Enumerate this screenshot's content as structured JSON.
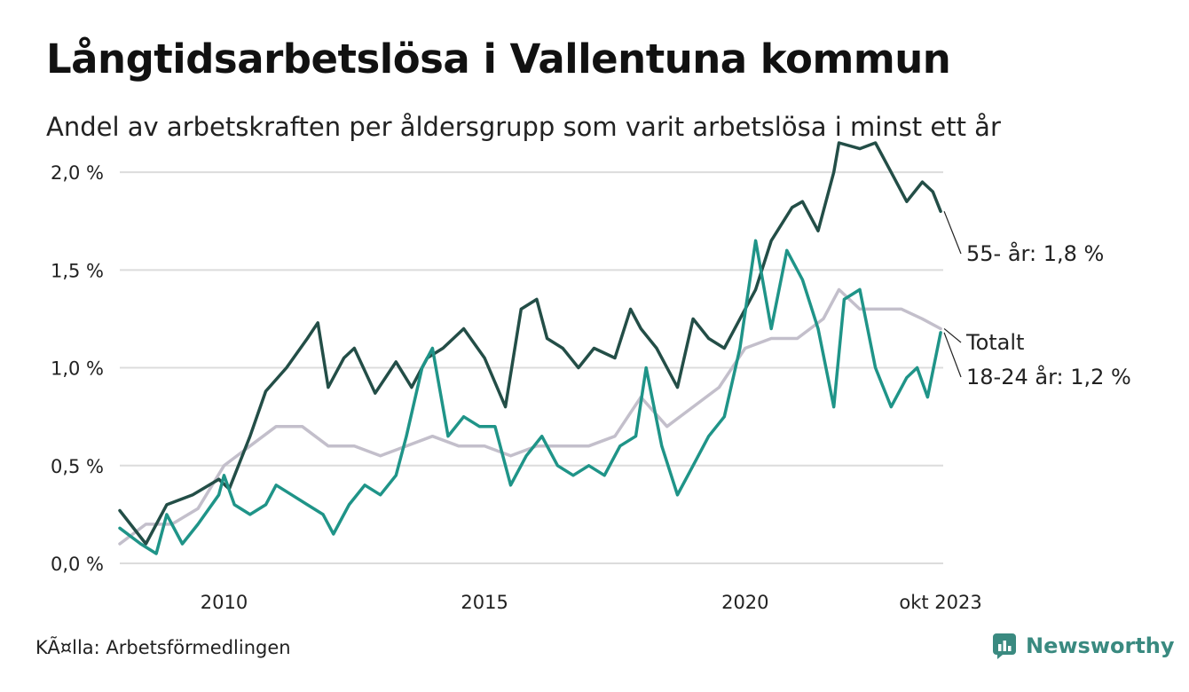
{
  "title": "Långtidsarbetslösa i Vallentuna kommun",
  "subtitle": "Andel av arbetskraften per åldersgrupp som varit arbetslösa i minst ett år",
  "source": "KÃ¤lla: Arbetsförmedlingen",
  "brand": "Newsworthy",
  "colors": {
    "s55": "#234e47",
    "total": "#c3bfcb",
    "s1824": "#1f9488",
    "grid": "#dcdcdc",
    "brand": "#3a8a80"
  },
  "chart_data": {
    "type": "line",
    "title": "Långtidsarbetslösa i Vallentuna kommun",
    "xlabel": "",
    "ylabel": "",
    "xlim": [
      2008.0,
      2023.8
    ],
    "ylim": [
      0,
      2.2
    ],
    "y_ticks": [
      0,
      0.5,
      1.0,
      1.5,
      2.0
    ],
    "y_tick_labels": [
      "0,0 %",
      "0,5 %",
      "1,0 %",
      "1,5 %",
      "2,0 %"
    ],
    "x_ticks": [
      2010,
      2015,
      2020,
      2023.75
    ],
    "x_tick_labels": [
      "2010",
      "2015",
      "2020",
      "okt 2023"
    ],
    "grid": true,
    "series": [
      {
        "name": "55- år",
        "end_label": "55- år: 1,8 %",
        "color_key": "s55",
        "points": [
          [
            2008.0,
            0.27
          ],
          [
            2008.5,
            0.1
          ],
          [
            2008.9,
            0.3
          ],
          [
            2009.4,
            0.35
          ],
          [
            2009.9,
            0.43
          ],
          [
            2010.1,
            0.38
          ],
          [
            2010.5,
            0.65
          ],
          [
            2010.8,
            0.88
          ],
          [
            2011.2,
            1.0
          ],
          [
            2011.6,
            1.15
          ],
          [
            2011.8,
            1.23
          ],
          [
            2012.0,
            0.9
          ],
          [
            2012.3,
            1.05
          ],
          [
            2012.5,
            1.1
          ],
          [
            2012.9,
            0.87
          ],
          [
            2013.3,
            1.03
          ],
          [
            2013.6,
            0.9
          ],
          [
            2013.9,
            1.05
          ],
          [
            2014.2,
            1.1
          ],
          [
            2014.6,
            1.2
          ],
          [
            2015.0,
            1.05
          ],
          [
            2015.4,
            0.8
          ],
          [
            2015.7,
            1.3
          ],
          [
            2016.0,
            1.35
          ],
          [
            2016.2,
            1.15
          ],
          [
            2016.5,
            1.1
          ],
          [
            2016.8,
            1.0
          ],
          [
            2017.1,
            1.1
          ],
          [
            2017.5,
            1.05
          ],
          [
            2017.8,
            1.3
          ],
          [
            2018.0,
            1.2
          ],
          [
            2018.3,
            1.1
          ],
          [
            2018.7,
            0.9
          ],
          [
            2019.0,
            1.25
          ],
          [
            2019.3,
            1.15
          ],
          [
            2019.6,
            1.1
          ],
          [
            2019.9,
            1.25
          ],
          [
            2020.2,
            1.4
          ],
          [
            2020.5,
            1.65
          ],
          [
            2020.9,
            1.82
          ],
          [
            2021.1,
            1.85
          ],
          [
            2021.4,
            1.7
          ],
          [
            2021.7,
            2.0
          ],
          [
            2021.8,
            2.15
          ],
          [
            2022.2,
            2.12
          ],
          [
            2022.5,
            2.15
          ],
          [
            2022.8,
            2.0
          ],
          [
            2023.1,
            1.85
          ],
          [
            2023.4,
            1.95
          ],
          [
            2023.6,
            1.9
          ],
          [
            2023.75,
            1.8
          ]
        ]
      },
      {
        "name": "Totalt",
        "end_label": "Totalt",
        "color_key": "total",
        "points": [
          [
            2008.0,
            0.1
          ],
          [
            2008.5,
            0.2
          ],
          [
            2009.0,
            0.2
          ],
          [
            2009.5,
            0.28
          ],
          [
            2010.0,
            0.5
          ],
          [
            2010.5,
            0.6
          ],
          [
            2011.0,
            0.7
          ],
          [
            2011.5,
            0.7
          ],
          [
            2012.0,
            0.6
          ],
          [
            2012.5,
            0.6
          ],
          [
            2013.0,
            0.55
          ],
          [
            2013.5,
            0.6
          ],
          [
            2014.0,
            0.65
          ],
          [
            2014.5,
            0.6
          ],
          [
            2015.0,
            0.6
          ],
          [
            2015.5,
            0.55
          ],
          [
            2016.0,
            0.6
          ],
          [
            2016.5,
            0.6
          ],
          [
            2017.0,
            0.6
          ],
          [
            2017.5,
            0.65
          ],
          [
            2018.0,
            0.85
          ],
          [
            2018.5,
            0.7
          ],
          [
            2019.0,
            0.8
          ],
          [
            2019.5,
            0.9
          ],
          [
            2020.0,
            1.1
          ],
          [
            2020.5,
            1.15
          ],
          [
            2021.0,
            1.15
          ],
          [
            2021.5,
            1.25
          ],
          [
            2021.8,
            1.4
          ],
          [
            2022.2,
            1.3
          ],
          [
            2022.6,
            1.3
          ],
          [
            2023.0,
            1.3
          ],
          [
            2023.4,
            1.25
          ],
          [
            2023.75,
            1.2
          ]
        ]
      },
      {
        "name": "18-24 år",
        "end_label": "18-24 år: 1,2 %",
        "color_key": "s1824",
        "points": [
          [
            2008.0,
            0.18
          ],
          [
            2008.4,
            0.1
          ],
          [
            2008.7,
            0.05
          ],
          [
            2008.9,
            0.25
          ],
          [
            2009.2,
            0.1
          ],
          [
            2009.5,
            0.2
          ],
          [
            2009.9,
            0.35
          ],
          [
            2010.0,
            0.45
          ],
          [
            2010.2,
            0.3
          ],
          [
            2010.5,
            0.25
          ],
          [
            2010.8,
            0.3
          ],
          [
            2011.0,
            0.4
          ],
          [
            2011.3,
            0.35
          ],
          [
            2011.6,
            0.3
          ],
          [
            2011.9,
            0.25
          ],
          [
            2012.1,
            0.15
          ],
          [
            2012.4,
            0.3
          ],
          [
            2012.7,
            0.4
          ],
          [
            2013.0,
            0.35
          ],
          [
            2013.3,
            0.45
          ],
          [
            2013.5,
            0.65
          ],
          [
            2013.8,
            1.0
          ],
          [
            2014.0,
            1.1
          ],
          [
            2014.3,
            0.65
          ],
          [
            2014.6,
            0.75
          ],
          [
            2014.9,
            0.7
          ],
          [
            2015.2,
            0.7
          ],
          [
            2015.5,
            0.4
          ],
          [
            2015.8,
            0.55
          ],
          [
            2016.1,
            0.65
          ],
          [
            2016.4,
            0.5
          ],
          [
            2016.7,
            0.45
          ],
          [
            2017.0,
            0.5
          ],
          [
            2017.3,
            0.45
          ],
          [
            2017.6,
            0.6
          ],
          [
            2017.9,
            0.65
          ],
          [
            2018.1,
            1.0
          ],
          [
            2018.4,
            0.6
          ],
          [
            2018.7,
            0.35
          ],
          [
            2019.0,
            0.5
          ],
          [
            2019.3,
            0.65
          ],
          [
            2019.6,
            0.75
          ],
          [
            2019.9,
            1.1
          ],
          [
            2020.2,
            1.65
          ],
          [
            2020.5,
            1.2
          ],
          [
            2020.8,
            1.6
          ],
          [
            2021.1,
            1.45
          ],
          [
            2021.4,
            1.2
          ],
          [
            2021.7,
            0.8
          ],
          [
            2021.9,
            1.35
          ],
          [
            2022.2,
            1.4
          ],
          [
            2022.5,
            1.0
          ],
          [
            2022.8,
            0.8
          ],
          [
            2023.1,
            0.95
          ],
          [
            2023.3,
            1.0
          ],
          [
            2023.5,
            0.85
          ],
          [
            2023.75,
            1.18
          ]
        ]
      }
    ]
  }
}
